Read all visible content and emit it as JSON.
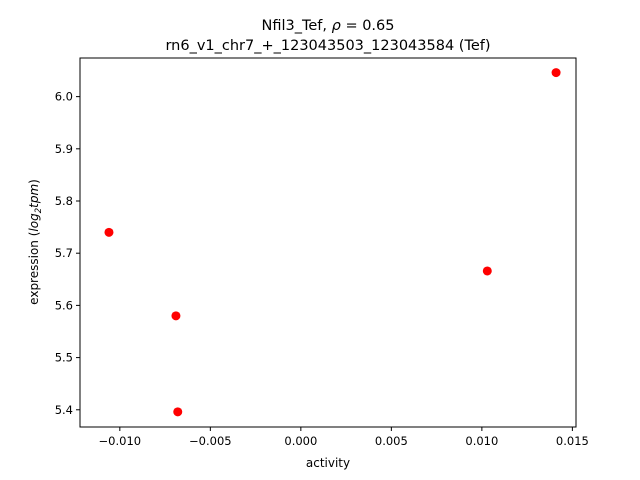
{
  "chart_data": {
    "type": "scatter",
    "title_line1_main": "Nfil3_Tef, ",
    "title_line1_rho": "ρ",
    "title_line1_rest": " = 0.65",
    "title_line2": "rn6_v1_chr7_+_123043503_123043584 (Tef)",
    "xlabel": "activity",
    "ylabel_prefix": "expression (",
    "ylabel_log": "log",
    "ylabel_sub": "2",
    "ylabel_tpm": "tpm",
    "ylabel_suffix": ")",
    "xlim": [
      -0.0122,
      0.0152
    ],
    "ylim": [
      5.367,
      6.074
    ],
    "xticks": [
      -0.01,
      -0.005,
      0.0,
      0.005,
      0.01,
      0.015
    ],
    "xtick_labels": [
      "−0.010",
      "−0.005",
      "0.000",
      "0.005",
      "0.010",
      "0.015"
    ],
    "yticks": [
      5.4,
      5.5,
      5.6,
      5.7,
      5.8,
      5.9,
      6.0
    ],
    "ytick_labels": [
      "5.4",
      "5.5",
      "5.6",
      "5.7",
      "5.8",
      "5.9",
      "6.0"
    ],
    "points": [
      {
        "x": -0.0106,
        "y": 5.74
      },
      {
        "x": -0.0069,
        "y": 5.58
      },
      {
        "x": -0.0068,
        "y": 5.396
      },
      {
        "x": 0.0103,
        "y": 5.666
      },
      {
        "x": 0.0141,
        "y": 6.046
      }
    ],
    "marker_color": "#ff0000",
    "grid": false,
    "legend": "none"
  }
}
